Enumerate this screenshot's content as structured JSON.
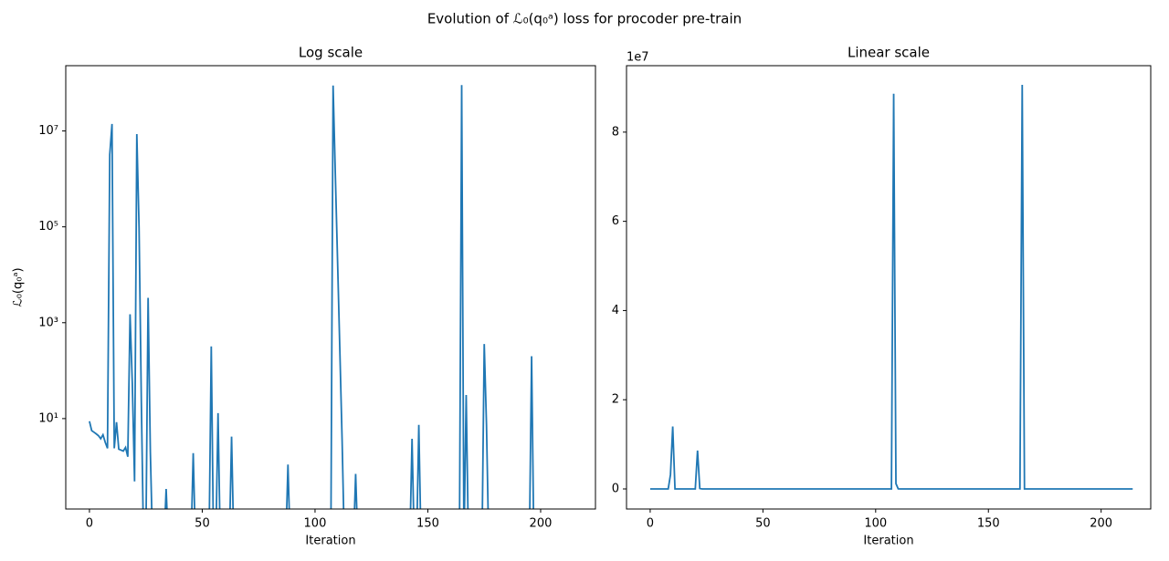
{
  "title": "Evolution of ℒ₀(q₀ᵃ) loss for procoder pre-train",
  "chart_data": [
    {
      "type": "line",
      "title": "Log scale",
      "xlabel": "Iteration",
      "ylabel": "ℒ₀(q₀ᵃ)",
      "log_scale": true,
      "color": "#1f77b4",
      "x": [
        0,
        1,
        2,
        3,
        4,
        5,
        6,
        7,
        8,
        9,
        10,
        11,
        12,
        13,
        14,
        15,
        16,
        17,
        18,
        19,
        20,
        21,
        22,
        23,
        24,
        25,
        26,
        27,
        28,
        33,
        34,
        35,
        45,
        46,
        47,
        53,
        54,
        55,
        56,
        57,
        58,
        62,
        63,
        64,
        87,
        88,
        89,
        107,
        108,
        109,
        110,
        111,
        112,
        113,
        117,
        118,
        119,
        142,
        143,
        144,
        145,
        146,
        147,
        164,
        165,
        166,
        167,
        168,
        174,
        175,
        176,
        177,
        195,
        196,
        197,
        214
      ],
      "values": [
        8.8,
        5.6,
        5.2,
        4.8,
        4.4,
        3.8,
        4.6,
        3.2,
        2.4,
        3200000,
        14000000,
        2.4,
        8.4,
        2.3,
        2.2,
        2.1,
        2.5,
        1.6,
        1500,
        55,
        0.49,
        8600000,
        95000,
        23,
        0,
        0,
        3300,
        2.0,
        0,
        0,
        0.34,
        0,
        0,
        1.9,
        0,
        0,
        320,
        0,
        0,
        13,
        0,
        0,
        4.2,
        0,
        0,
        1.1,
        0,
        0,
        88600000,
        1200000,
        18000,
        260,
        3.5,
        0,
        0,
        0.7,
        0,
        0,
        3.8,
        0,
        0,
        7.4,
        0,
        0,
        90600000,
        0,
        31,
        0,
        0,
        360,
        7.4,
        0,
        0,
        200,
        0,
        0
      ],
      "xlim": [
        -10.5,
        224.3
      ],
      "xticks": [
        0,
        50,
        100,
        150,
        200
      ],
      "ylim": [
        0.13,
        230000000
      ],
      "yticks": [
        {
          "value": 10,
          "label": "10¹"
        },
        {
          "value": 1000,
          "label": "10³"
        },
        {
          "value": 100000,
          "label": "10⁵"
        },
        {
          "value": 10000000,
          "label": "10⁷"
        }
      ]
    },
    {
      "type": "line",
      "title": "Linear scale",
      "xlabel": "Iteration",
      "offset_label": "1e7",
      "log_scale": false,
      "color": "#1f77b4",
      "x": [
        0,
        1,
        2,
        3,
        4,
        5,
        6,
        7,
        8,
        9,
        10,
        11,
        12,
        13,
        14,
        15,
        16,
        17,
        18,
        19,
        20,
        21,
        22,
        23,
        24,
        25,
        26,
        27,
        28,
        33,
        34,
        35,
        45,
        46,
        47,
        53,
        54,
        55,
        56,
        57,
        58,
        62,
        63,
        64,
        87,
        88,
        89,
        107,
        108,
        109,
        110,
        111,
        112,
        113,
        117,
        118,
        119,
        142,
        143,
        144,
        145,
        146,
        147,
        164,
        165,
        166,
        167,
        168,
        174,
        175,
        176,
        177,
        195,
        196,
        197,
        214
      ],
      "values": [
        8.8,
        5.6,
        5.2,
        4.8,
        4.4,
        3.8,
        4.6,
        3.2,
        2.4,
        3200000,
        14000000,
        2.4,
        8.4,
        2.3,
        2.2,
        2.1,
        2.5,
        1.6,
        1500,
        55,
        0.49,
        8600000,
        95000,
        23,
        0,
        0,
        3300,
        2.0,
        0,
        0,
        0.34,
        0,
        0,
        1.9,
        0,
        0,
        320,
        0,
        0,
        13,
        0,
        0,
        4.2,
        0,
        0,
        1.1,
        0,
        0,
        88600000,
        1200000,
        18000,
        260,
        3.5,
        0,
        0,
        0.7,
        0,
        0,
        3.8,
        0,
        0,
        7.4,
        0,
        0,
        90600000,
        0,
        31,
        0,
        0,
        360,
        7.4,
        0,
        0,
        200,
        0,
        0
      ],
      "xlim": [
        -10.5,
        222
      ],
      "xticks": [
        0,
        50,
        100,
        150,
        200
      ],
      "ylim": [
        -4500000,
        94900000
      ],
      "yticks": [
        {
          "value": 0,
          "label": "0"
        },
        {
          "value": 20000000,
          "label": "2"
        },
        {
          "value": 40000000,
          "label": "4"
        },
        {
          "value": 60000000,
          "label": "6"
        },
        {
          "value": 80000000,
          "label": "8"
        }
      ]
    }
  ]
}
